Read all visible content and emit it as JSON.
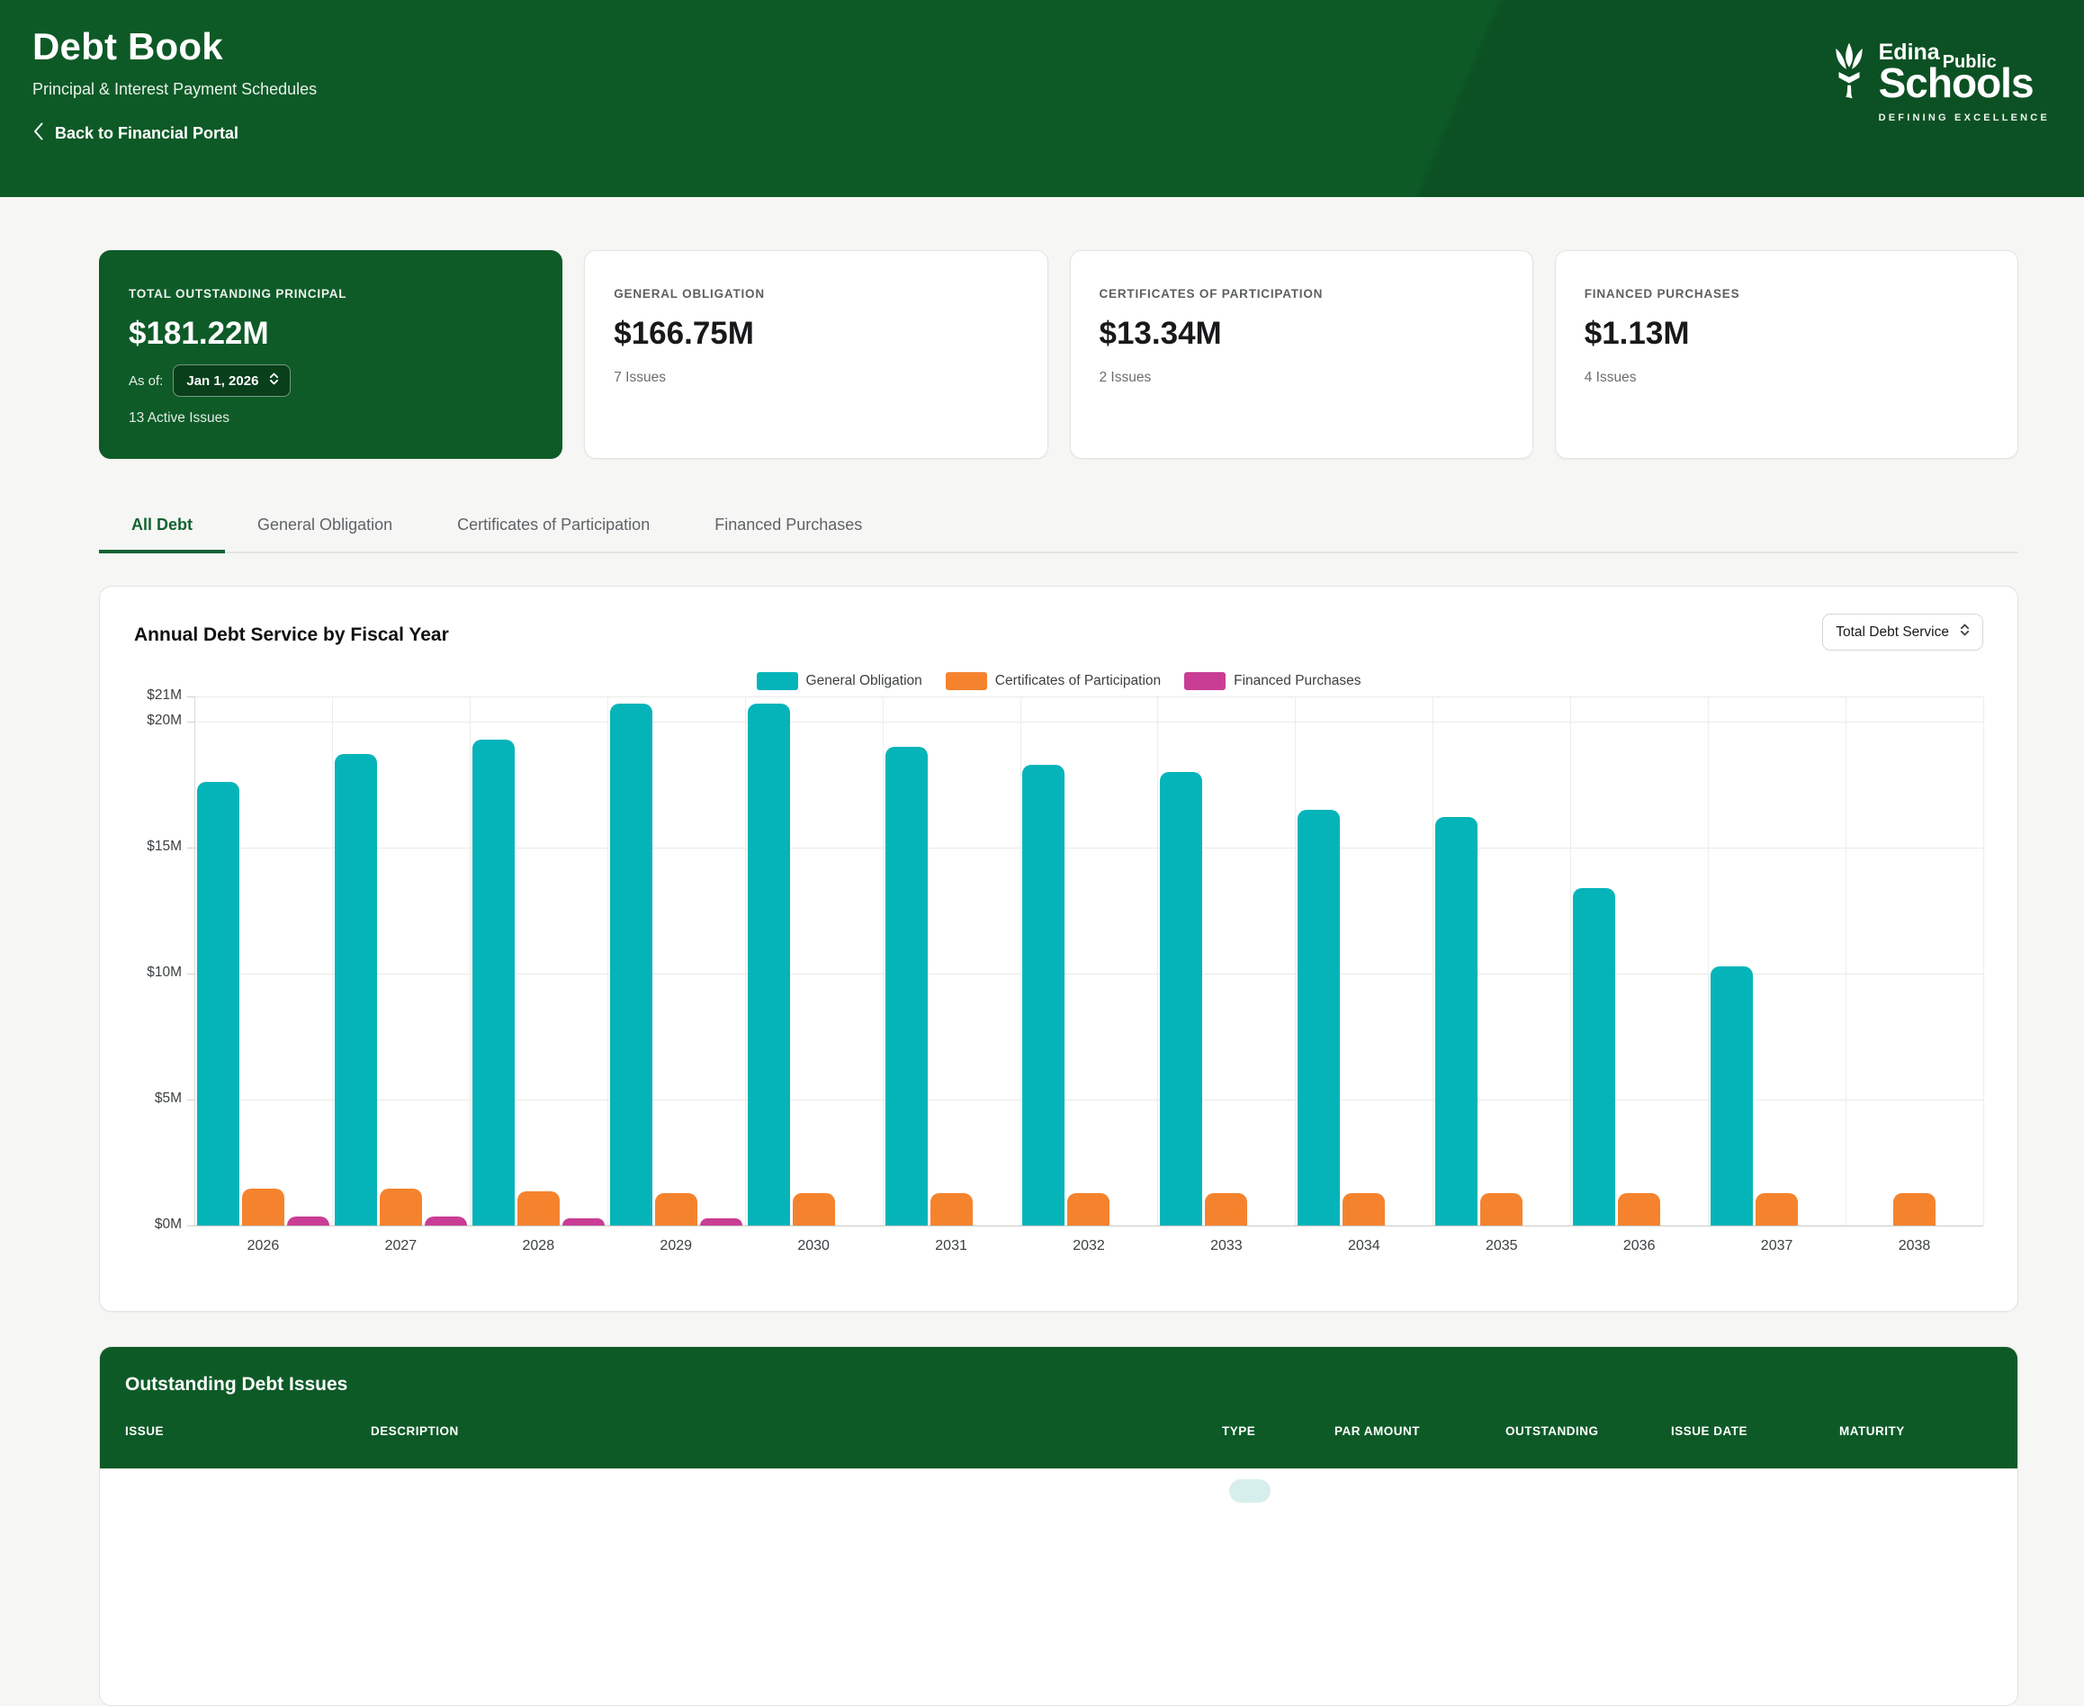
{
  "header": {
    "title": "Debt Book",
    "subtitle": "Principal & Interest Payment Schedules",
    "back_label": "Back to Financial Portal",
    "logo": {
      "word1": "Edina",
      "word2": "Public",
      "word3": "Schools",
      "tagline": "DEFINING EXCELLENCE"
    }
  },
  "summary_cards": [
    {
      "label": "TOTAL OUTSTANDING PRINCIPAL",
      "value": "$181.22M",
      "as_of_label": "As of:",
      "as_of_value": "Jan 1, 2026",
      "sub": "13 Active Issues"
    },
    {
      "label": "GENERAL OBLIGATION",
      "value": "$166.75M",
      "sub": "7 Issues"
    },
    {
      "label": "CERTIFICATES OF PARTICIPATION",
      "value": "$13.34M",
      "sub": "2 Issues"
    },
    {
      "label": "FINANCED PURCHASES",
      "value": "$1.13M",
      "sub": "4 Issues"
    }
  ],
  "tabs": [
    {
      "label": "All Debt",
      "active": true
    },
    {
      "label": "General Obligation",
      "active": false
    },
    {
      "label": "Certificates of Participation",
      "active": false
    },
    {
      "label": "Financed Purchases",
      "active": false
    }
  ],
  "chart_card": {
    "title": "Annual Debt Service by Fiscal Year",
    "filter_value": "Total Debt Service"
  },
  "chart_data": {
    "type": "bar",
    "title": "Annual Debt Service by Fiscal Year",
    "categories": [
      "2026",
      "2027",
      "2028",
      "2029",
      "2030",
      "2031",
      "2032",
      "2033",
      "2034",
      "2035",
      "2036",
      "2037",
      "2038"
    ],
    "series": [
      {
        "name": "General Obligation",
        "color": "#05b4b9",
        "values": [
          17.6,
          18.7,
          19.3,
          20.7,
          20.7,
          19.0,
          18.3,
          18.0,
          16.5,
          16.2,
          13.4,
          10.3,
          0
        ]
      },
      {
        "name": "Certificates of Participation",
        "color": "#f5832e",
        "values": [
          1.45,
          1.45,
          1.35,
          1.3,
          1.3,
          1.3,
          1.3,
          1.3,
          1.3,
          1.3,
          1.3,
          1.3,
          1.3
        ]
      },
      {
        "name": "Financed Purchases",
        "color": "#c93d94",
        "values": [
          0.35,
          0.35,
          0.3,
          0.3,
          0,
          0,
          0,
          0,
          0,
          0,
          0,
          0,
          0
        ]
      }
    ],
    "unit": "millions USD",
    "ylim": [
      0,
      21
    ],
    "y_ticks": [
      {
        "value": 21,
        "label": "$21M"
      },
      {
        "value": 20,
        "label": "$20M"
      },
      {
        "value": 15,
        "label": "$15M"
      },
      {
        "value": 10,
        "label": "$10M"
      },
      {
        "value": 5,
        "label": "$5M"
      },
      {
        "value": 0,
        "label": "$0M"
      }
    ],
    "grid": true,
    "legend_position": "top"
  },
  "table_card": {
    "title": "Outstanding Debt Issues",
    "columns": [
      "ISSUE",
      "DESCRIPTION",
      "TYPE",
      "PAR AMOUNT",
      "OUTSTANDING",
      "ISSUE DATE",
      "MATURITY"
    ]
  },
  "colors": {
    "brand_green": "#0d5a27",
    "active_tab_green": "#136232",
    "teal": "#05b4b9",
    "orange": "#f5832e",
    "magenta": "#c93d94",
    "badge_teal_bg": "#d7efec",
    "page_bg": "#f6f6f4"
  }
}
